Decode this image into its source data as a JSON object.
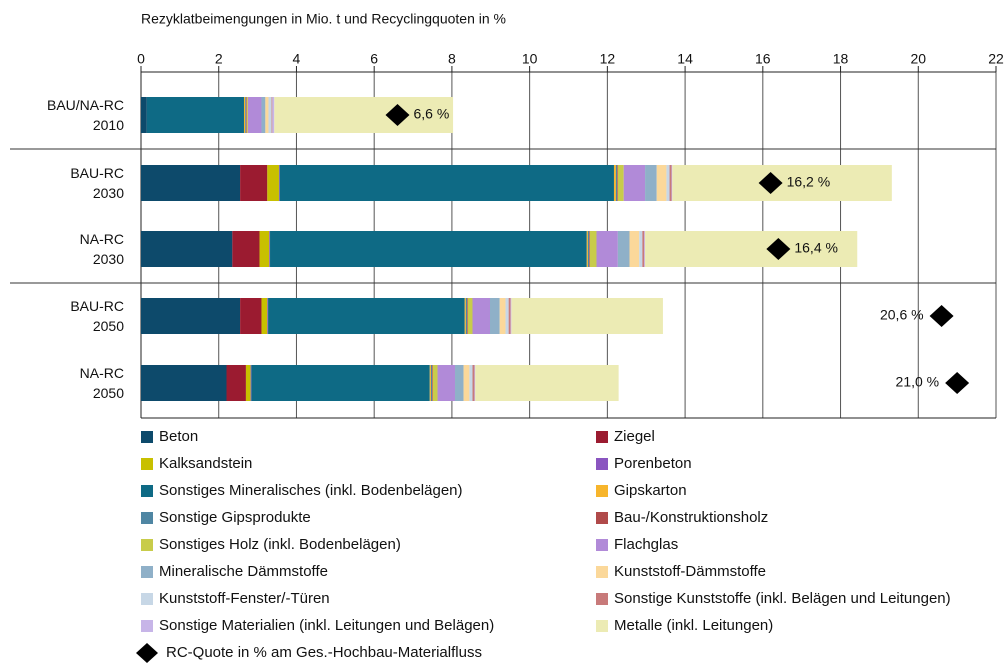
{
  "chart_data": {
    "type": "stacked-barh",
    "title": "Rezyklatbeimengungen in Mio. t und Recyclingquoten in %",
    "categories": [
      "BAU/NA-RC\n2010",
      "BAU-RC\n2030",
      "NA-RC\n2030",
      "BAU-RC\n2050",
      "NA-RC\n2050"
    ],
    "xlim": [
      0,
      22
    ],
    "xticks": [
      0,
      2,
      4,
      6,
      8,
      10,
      12,
      14,
      16,
      18,
      20,
      22
    ],
    "grid": true,
    "series": [
      {
        "name": "Beton",
        "color": "#0d4a6b",
        "values": [
          0.15,
          2.55,
          2.35,
          2.55,
          2.2
        ]
      },
      {
        "name": "Ziegel",
        "color": "#9b1b30",
        "values": [
          0,
          0.7,
          0.7,
          0.55,
          0.5
        ]
      },
      {
        "name": "Kalksandstein",
        "color": "#c8c000",
        "values": [
          0,
          0.3,
          0.25,
          0.15,
          0.12
        ]
      },
      {
        "name": "Porenbeton",
        "color": "#8a55c0",
        "values": [
          0,
          0.02,
          0.02,
          0.02,
          0.02
        ]
      },
      {
        "name": "Sonstiges Mineralisches (inkl. Bodenbelägen)",
        "color": "#0e6a85",
        "values": [
          2.5,
          8.6,
          8.15,
          5.06,
          4.59
        ]
      },
      {
        "name": "Gipskarton",
        "color": "#f7b52c",
        "values": [
          0.03,
          0.05,
          0.03,
          0.03,
          0.03
        ]
      },
      {
        "name": "Sonstige Gipsprodukte",
        "color": "#4f86a3",
        "values": [
          0.02,
          0.03,
          0.03,
          0.03,
          0.03
        ]
      },
      {
        "name": "Bau-/Konstruktionsholz",
        "color": "#b04a4a",
        "values": [
          0.02,
          0.02,
          0.02,
          0.02,
          0.02
        ]
      },
      {
        "name": "Sonstiges Holz (inkl. Bodenbelägen)",
        "color": "#c8cc4a",
        "values": [
          0.03,
          0.15,
          0.17,
          0.12,
          0.12
        ]
      },
      {
        "name": "Flachglas",
        "color": "#b18ad8",
        "values": [
          0.35,
          0.55,
          0.55,
          0.45,
          0.45
        ]
      },
      {
        "name": "Mineralische Dämmstoffe",
        "color": "#8fb0c8",
        "values": [
          0.1,
          0.3,
          0.3,
          0.25,
          0.22
        ]
      },
      {
        "name": "Kunststoff-Dämmstoffe",
        "color": "#fbd89a",
        "values": [
          0.08,
          0.25,
          0.25,
          0.15,
          0.15
        ]
      },
      {
        "name": "Kunststoff-Fenster/-Türen",
        "color": "#c7d7e6",
        "values": [
          0.08,
          0.08,
          0.08,
          0.08,
          0.08
        ]
      },
      {
        "name": "Sonstige Kunststoffe (inkl. Belägen und Leitungen)",
        "color": "#c87a7a",
        "values": [
          0.02,
          0.05,
          0.05,
          0.05,
          0.05
        ]
      },
      {
        "name": "Sonstige Materialien (inkl. Leitungen und Belägen)",
        "color": "#c7b5e8",
        "values": [
          0.05,
          0.02,
          0.02,
          0.02,
          0.02
        ]
      },
      {
        "name": "Metalle (inkl. Leitungen)",
        "color": "#ecebb4",
        "values": [
          4.6,
          5.65,
          5.46,
          3.9,
          3.69
        ]
      }
    ],
    "markers": {
      "name": "RC-Quote in % am Ges.-Hochbau-Materialfluss",
      "color": "#000000",
      "values": [
        6.6,
        16.2,
        16.4,
        20.6,
        21.0
      ],
      "value_labels": [
        "6,6 %",
        "16,2 %",
        "16,4 %",
        "20,6 %",
        "21,0 %"
      ]
    }
  }
}
